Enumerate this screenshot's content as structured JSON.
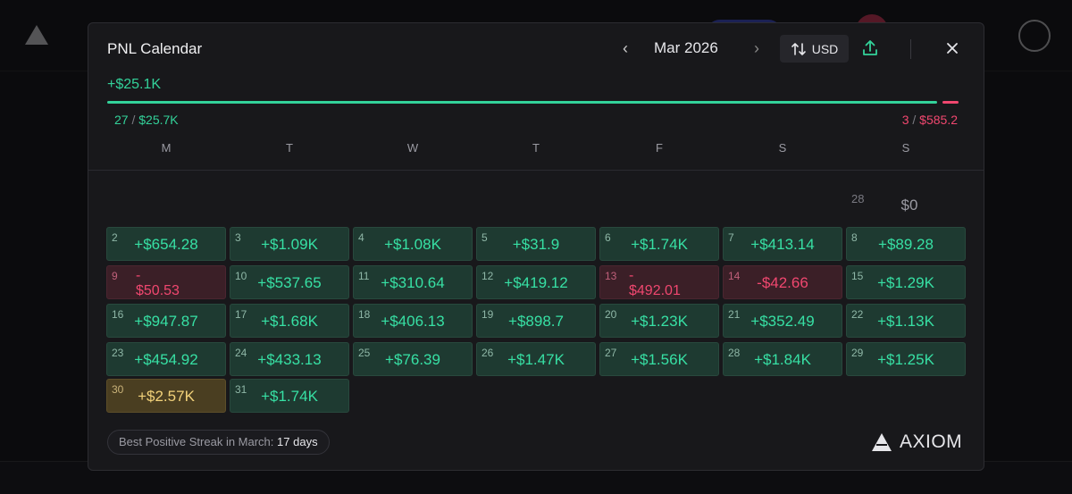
{
  "modal": {
    "title": "PNL Calendar",
    "month": "Mar 2026",
    "currency": "USD",
    "total": "+$25.1K",
    "wins": {
      "count": "27",
      "amount": "$25.7K"
    },
    "losses": {
      "count": "3",
      "amount": "$585.2"
    },
    "win_fraction": 0.978,
    "weekdays": [
      "M",
      "T",
      "W",
      "T",
      "F",
      "S",
      "S"
    ],
    "streak": {
      "label": "Best Positive Streak in March:",
      "value": "17 days"
    },
    "brand": "AXIOM"
  },
  "days": [
    {
      "day": "28",
      "pnl": "$0",
      "kind": "empty"
    },
    {
      "day": "2",
      "pnl": "+$654.28",
      "kind": "gain"
    },
    {
      "day": "3",
      "pnl": "+$1.09K",
      "kind": "gain"
    },
    {
      "day": "4",
      "pnl": "+$1.08K",
      "kind": "gain"
    },
    {
      "day": "5",
      "pnl": "+$31.9",
      "kind": "gain"
    },
    {
      "day": "6",
      "pnl": "+$1.74K",
      "kind": "gain"
    },
    {
      "day": "7",
      "pnl": "+$413.14",
      "kind": "gain"
    },
    {
      "day": "8",
      "pnl": "+$89.28",
      "kind": "gain"
    },
    {
      "day": "9",
      "pnl": "-$50.53",
      "kind": "loss-wrap"
    },
    {
      "day": "10",
      "pnl": "+$537.65",
      "kind": "gain"
    },
    {
      "day": "11",
      "pnl": "+$310.64",
      "kind": "gain"
    },
    {
      "day": "12",
      "pnl": "+$419.12",
      "kind": "gain"
    },
    {
      "day": "13",
      "pnl": "-$492.01",
      "kind": "loss-wrap"
    },
    {
      "day": "14",
      "pnl": "-$42.66",
      "kind": "loss"
    },
    {
      "day": "15",
      "pnl": "+$1.29K",
      "kind": "gain"
    },
    {
      "day": "16",
      "pnl": "+$947.87",
      "kind": "gain"
    },
    {
      "day": "17",
      "pnl": "+$1.68K",
      "kind": "gain"
    },
    {
      "day": "18",
      "pnl": "+$406.13",
      "kind": "gain"
    },
    {
      "day": "19",
      "pnl": "+$898.7",
      "kind": "gain"
    },
    {
      "day": "20",
      "pnl": "+$1.23K",
      "kind": "gain"
    },
    {
      "day": "21",
      "pnl": "+$352.49",
      "kind": "gain"
    },
    {
      "day": "22",
      "pnl": "+$1.13K",
      "kind": "gain"
    },
    {
      "day": "23",
      "pnl": "+$454.92",
      "kind": "gain"
    },
    {
      "day": "24",
      "pnl": "+$433.13",
      "kind": "gain"
    },
    {
      "day": "25",
      "pnl": "+$76.39",
      "kind": "gain"
    },
    {
      "day": "26",
      "pnl": "+$1.47K",
      "kind": "gain"
    },
    {
      "day": "27",
      "pnl": "+$1.56K",
      "kind": "gain"
    },
    {
      "day": "28",
      "pnl": "+$1.84K",
      "kind": "gain"
    },
    {
      "day": "29",
      "pnl": "+$1.25K",
      "kind": "gain"
    },
    {
      "day": "30",
      "pnl": "+$2.57K",
      "kind": "best"
    },
    {
      "day": "31",
      "pnl": "+$1.74K",
      "kind": "gain"
    }
  ],
  "colors": {
    "gain": "#37e0a4",
    "loss": "#f0476f",
    "best": "#f2d27a",
    "panel": "#18181b"
  }
}
